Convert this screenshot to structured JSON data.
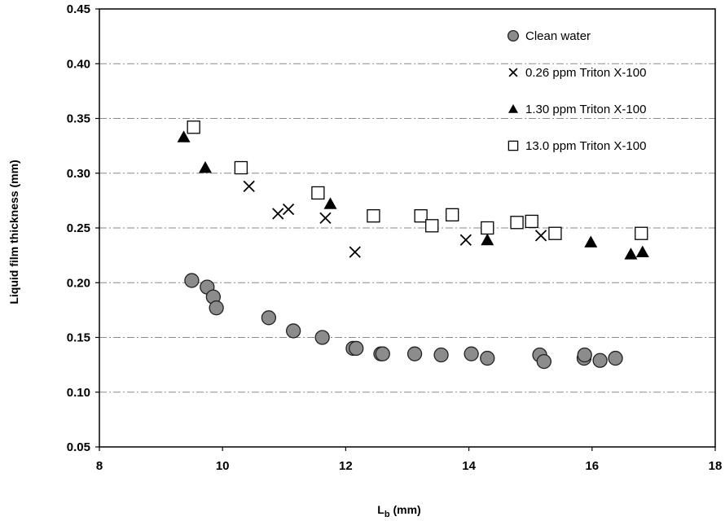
{
  "chart_data": {
    "type": "scatter",
    "title": "",
    "xlabel": "L",
    "xlabel_subscript": "b",
    "xlabel_unit": " (mm)",
    "ylabel": "Liquid film thickness (mm)",
    "xlim": [
      8,
      18
    ],
    "ylim": [
      0.05,
      0.45
    ],
    "x_ticks": [
      8,
      10,
      12,
      14,
      16,
      18
    ],
    "x_tick_labels": [
      "8",
      "10",
      "12",
      "14",
      "16",
      "18"
    ],
    "y_ticks": [
      0.05,
      0.1,
      0.15,
      0.2,
      0.25,
      0.3,
      0.35,
      0.4,
      0.45
    ],
    "y_tick_labels": [
      "0.05",
      "0.10",
      "0.15",
      "0.20",
      "0.25",
      "0.30",
      "0.35",
      "0.40",
      "0.45"
    ],
    "grid": "horizontal dash-dot",
    "legend_position": "top-right",
    "series": [
      {
        "name": "Clean water",
        "marker": "circle",
        "color": "#8c8c8c",
        "points": [
          [
            9.5,
            0.202
          ],
          [
            9.75,
            0.196
          ],
          [
            9.85,
            0.187
          ],
          [
            9.9,
            0.177
          ],
          [
            10.75,
            0.168
          ],
          [
            11.15,
            0.156
          ],
          [
            11.62,
            0.15
          ],
          [
            12.12,
            0.14
          ],
          [
            12.17,
            0.14
          ],
          [
            12.57,
            0.135
          ],
          [
            12.6,
            0.135
          ],
          [
            13.12,
            0.135
          ],
          [
            13.55,
            0.134
          ],
          [
            14.04,
            0.135
          ],
          [
            14.3,
            0.131
          ],
          [
            15.15,
            0.134
          ],
          [
            15.22,
            0.128
          ],
          [
            15.87,
            0.131
          ],
          [
            15.88,
            0.134
          ],
          [
            16.13,
            0.129
          ],
          [
            16.38,
            0.131
          ]
        ]
      },
      {
        "name": "0.26 ppm Triton X-100",
        "marker": "x",
        "color": "#000000",
        "points": [
          [
            10.43,
            0.288
          ],
          [
            10.9,
            0.263
          ],
          [
            11.07,
            0.267
          ],
          [
            11.67,
            0.259
          ],
          [
            12.15,
            0.228
          ],
          [
            13.95,
            0.239
          ],
          [
            15.17,
            0.243
          ]
        ]
      },
      {
        "name": "1.30 ppm Triton X-100",
        "marker": "triangle",
        "color": "#000000",
        "points": [
          [
            9.37,
            0.333
          ],
          [
            9.72,
            0.305
          ],
          [
            11.75,
            0.272
          ],
          [
            14.3,
            0.239
          ],
          [
            15.98,
            0.237
          ],
          [
            16.63,
            0.226
          ],
          [
            16.82,
            0.228
          ]
        ]
      },
      {
        "name": "13.0 ppm Triton X-100",
        "marker": "square",
        "color": "#ffffff",
        "points": [
          [
            9.53,
            0.342
          ],
          [
            10.3,
            0.305
          ],
          [
            11.55,
            0.282
          ],
          [
            12.45,
            0.261
          ],
          [
            13.22,
            0.261
          ],
          [
            13.4,
            0.252
          ],
          [
            13.73,
            0.262
          ],
          [
            14.3,
            0.25
          ],
          [
            14.78,
            0.255
          ],
          [
            15.02,
            0.256
          ],
          [
            15.4,
            0.245
          ],
          [
            16.8,
            0.245
          ]
        ]
      }
    ]
  }
}
